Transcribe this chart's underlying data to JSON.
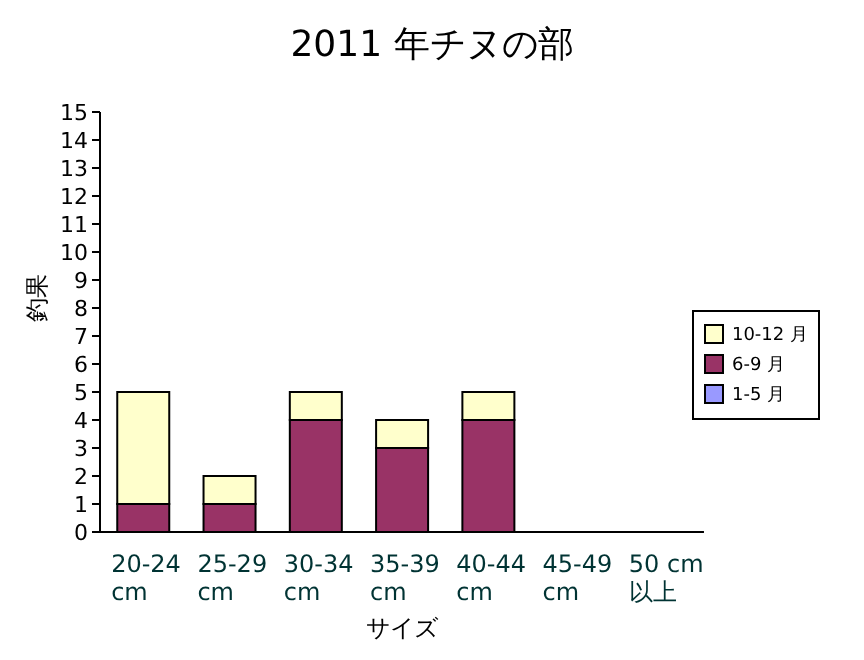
{
  "chart_data": {
    "type": "bar",
    "title": "2011 年チヌの部",
    "xlabel": "サイズ",
    "ylabel": "釣果",
    "categories": [
      "20-24 cm",
      "25-29 cm",
      "30-34 cm",
      "35-39 cm",
      "40-44 cm",
      "45-49 cm",
      "50 cm 以上"
    ],
    "series": [
      {
        "name": "1-5 月",
        "color": "#9999ff",
        "values": [
          0,
          0,
          0,
          0,
          0,
          0,
          0
        ]
      },
      {
        "name": "6-9 月",
        "color": "#993366",
        "values": [
          1,
          1,
          4,
          3,
          4,
          0,
          0
        ]
      },
      {
        "name": "10-12 月",
        "color": "#ffffcc",
        "values": [
          4,
          1,
          1,
          1,
          1,
          0,
          0
        ]
      }
    ],
    "stacked": true,
    "ylim": [
      0,
      15
    ],
    "yticks": [
      0,
      1,
      2,
      3,
      4,
      5,
      6,
      7,
      8,
      9,
      10,
      11,
      12,
      13,
      14,
      15
    ],
    "grid": false,
    "legend": "right"
  }
}
